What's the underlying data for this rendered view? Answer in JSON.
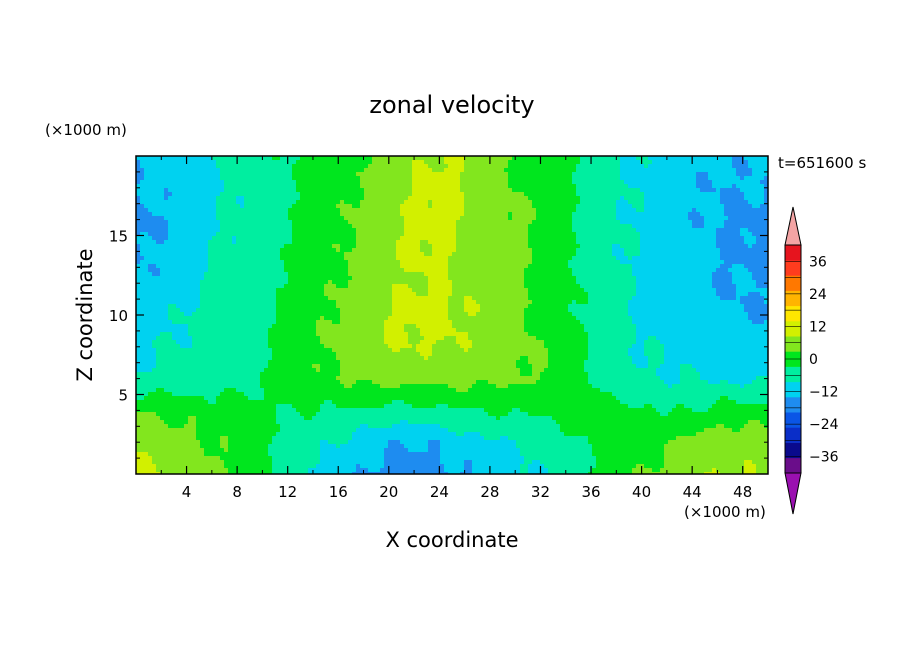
{
  "chart_data": {
    "type": "heatmap",
    "title": "zonal velocity",
    "xlabel": "X coordinate",
    "ylabel": "Z coordinate",
    "x_unit": "(×1000 m)",
    "y_unit": "(×1000 m)",
    "time_label": "t=651600 s",
    "xlim": [
      0,
      50
    ],
    "ylim": [
      0,
      20
    ],
    "x_ticks": [
      4,
      8,
      12,
      16,
      20,
      24,
      28,
      32,
      36,
      40,
      44,
      48
    ],
    "y_ticks": [
      5,
      10,
      15
    ],
    "x_tick_labels": [
      "4",
      "8",
      "12",
      "16",
      "20",
      "24",
      "28",
      "32",
      "36",
      "40",
      "44",
      "48"
    ],
    "y_tick_labels": [
      "5",
      "10",
      "15"
    ],
    "colorbar": {
      "levels": [
        -42,
        -36,
        -30,
        -24,
        -18,
        -12,
        -6,
        0,
        6,
        12,
        18,
        24,
        30,
        36,
        42
      ],
      "tick_values": [
        -36,
        -24,
        -12,
        0,
        12,
        24,
        36
      ],
      "tick_labels": [
        "−36",
        "−24",
        "−12",
        "0",
        "12",
        "24",
        "36"
      ],
      "colors": [
        "#6a0d8a",
        "#0a0a8c",
        "#0a2ec8",
        "#0a55e6",
        "#1e8cf0",
        "#00d2f0",
        "#00eea0",
        "#00e61e",
        "#82e61e",
        "#d2f000",
        "#ffe600",
        "#ffb400",
        "#ff7800",
        "#ff3c1e",
        "#e6141e"
      ],
      "under_color": "#9a10b0",
      "over_color": "#f4a4a4"
    },
    "x": [
      0,
      2,
      4,
      6,
      8,
      10,
      12,
      14,
      16,
      18,
      20,
      22,
      24,
      26,
      28,
      30,
      32,
      34,
      36,
      38,
      40,
      42,
      44,
      46,
      48,
      50
    ],
    "z": [
      0,
      2,
      4,
      6,
      8,
      10,
      12,
      14,
      16,
      18,
      20
    ],
    "values": [
      [
        14,
        12,
        10,
        8,
        5,
        2,
        -3,
        -6,
        -9,
        -12,
        -14,
        -15,
        -14,
        -12,
        -10,
        -8,
        -6,
        -2,
        0,
        2,
        6,
        8,
        10,
        12,
        12,
        10
      ],
      [
        12,
        10,
        8,
        6,
        4,
        1,
        -2,
        -4,
        -6,
        -9,
        -11,
        -12,
        -11,
        -9,
        -7,
        -5,
        -3,
        -1,
        0,
        3,
        4,
        6,
        8,
        10,
        10,
        8
      ],
      [
        6,
        5,
        4,
        3,
        2,
        1,
        0,
        0,
        0,
        -1,
        -2,
        -2,
        -1,
        0,
        0,
        1,
        1,
        2,
        2,
        2,
        1,
        0,
        0,
        2,
        3,
        2
      ],
      [
        -6,
        -5,
        -4,
        -3,
        -2,
        0,
        2,
        4,
        6,
        8,
        8,
        8,
        8,
        8,
        8,
        7,
        6,
        4,
        0,
        -3,
        -5,
        -6,
        -6,
        -7,
        -7,
        -7
      ],
      [
        -7,
        -6,
        -5,
        -4,
        -2,
        -1,
        2,
        5,
        8,
        10,
        12,
        12,
        12,
        11,
        10,
        8,
        6,
        3,
        -1,
        -4,
        -6,
        -7,
        -8,
        -9,
        -10,
        -10
      ],
      [
        -8,
        -7,
        -6,
        -4,
        -2,
        -1,
        1,
        4,
        7,
        10,
        12,
        14,
        14,
        12,
        10,
        8,
        5,
        2,
        -2,
        -5,
        -7,
        -8,
        -10,
        -11,
        -12,
        -12
      ],
      [
        -11,
        -10,
        -8,
        -5,
        -3,
        -2,
        0,
        3,
        6,
        9,
        11,
        12,
        12,
        11,
        9,
        7,
        5,
        2,
        -2,
        -5,
        -7,
        -8,
        -10,
        -12,
        -12,
        -12
      ],
      [
        -13,
        -11,
        -9,
        -6,
        -4,
        -2,
        0,
        2,
        5,
        8,
        11,
        13,
        13,
        11,
        9,
        7,
        5,
        2,
        -2,
        -5,
        -7,
        -9,
        -10,
        -12,
        -13,
        -13
      ],
      [
        -14,
        -12,
        -10,
        -7,
        -5,
        -3,
        -1,
        2,
        5,
        8,
        11,
        13,
        14,
        12,
        9,
        7,
        5,
        2,
        -2,
        -5,
        -7,
        -9,
        -11,
        -12,
        -13,
        -14
      ],
      [
        -12,
        -11,
        -9,
        -7,
        -5,
        -3,
        -1,
        1,
        4,
        7,
        10,
        12,
        14,
        12,
        9,
        6,
        4,
        1,
        -2,
        -5,
        -7,
        -9,
        -11,
        -12,
        -12,
        -12
      ],
      [
        -11,
        -10,
        -8,
        -6,
        -4,
        -2,
        0,
        1,
        3,
        6,
        9,
        11,
        13,
        11,
        9,
        6,
        3,
        1,
        -2,
        -5,
        -7,
        -8,
        -10,
        -11,
        -11,
        -11
      ]
    ]
  }
}
